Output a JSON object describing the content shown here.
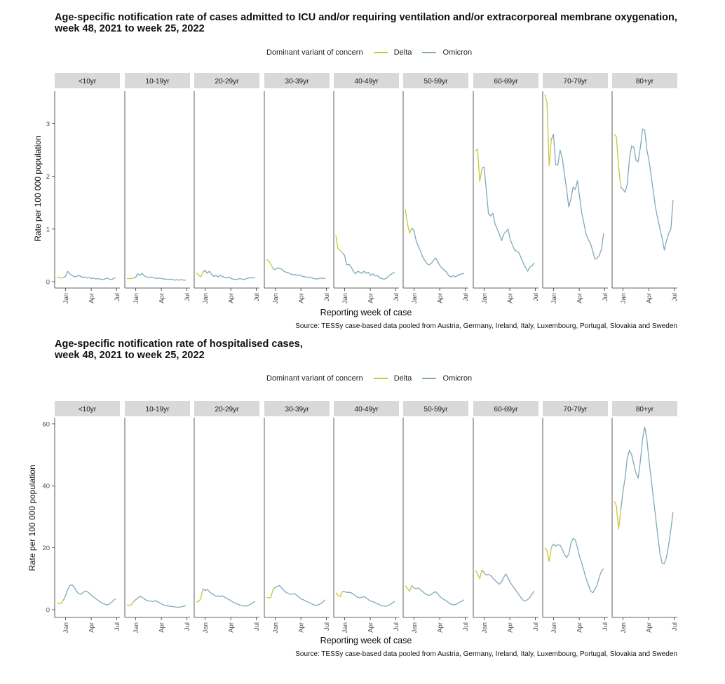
{
  "colors": {
    "delta": "#c8c832",
    "omicron": "#7fa9b8",
    "strip": "#d9d9d9",
    "axis": "#333333"
  },
  "chart_data": [
    {
      "type": "line",
      "title": "Age-specific notification rate of cases admitted to ICU and/or requiring ventilation and/or extracorporeal membrane oxygenation,",
      "subtitle": "week 48, 2021 to week 25, 2022",
      "legend_title": "Dominant variant of concern",
      "legend": [
        "Delta",
        "Omicron"
      ],
      "legend_position": "top",
      "xlabel": "Reporting week of case",
      "ylabel": "Rate per 100 000 population",
      "source": "Source: TESSy case-based data pooled from Austria, Germany, Ireland, Italy, Luxembourg, Portugal, Slovakia and Sweden",
      "x_ticks": [
        "Jan",
        "Apr",
        "Jul"
      ],
      "y_ticks": [
        0,
        1,
        2,
        3
      ],
      "ylim": [
        -0.12,
        3.62
      ],
      "x_range_weeks": [
        48,
        25
      ],
      "panels": [
        {
          "label": "<10yr",
          "delta": [
            0.08,
            0.08,
            0.07,
            0.08
          ],
          "omicron": [
            0.08,
            0.1,
            0.2,
            0.15,
            0.12,
            0.09,
            0.1,
            0.12,
            0.1,
            0.08,
            0.09,
            0.07,
            0.08,
            0.06,
            0.07,
            0.05,
            0.06,
            0.05,
            0.04,
            0.05,
            0.07,
            0.05,
            0.04,
            0.06,
            0.08
          ]
        },
        {
          "label": "10-19yr",
          "delta": [
            0.06,
            0.06,
            0.06,
            0.07
          ],
          "omicron": [
            0.07,
            0.08,
            0.15,
            0.12,
            0.16,
            0.11,
            0.09,
            0.08,
            0.09,
            0.08,
            0.07,
            0.06,
            0.07,
            0.06,
            0.05,
            0.05,
            0.04,
            0.05,
            0.04,
            0.03,
            0.04,
            0.03,
            0.04,
            0.03,
            0.03
          ]
        },
        {
          "label": "20-29yr",
          "delta": [
            0.17,
            0.13,
            0.09,
            0.18
          ],
          "omicron": [
            0.18,
            0.22,
            0.16,
            0.2,
            0.14,
            0.1,
            0.12,
            0.09,
            0.12,
            0.1,
            0.08,
            0.07,
            0.09,
            0.06,
            0.05,
            0.04,
            0.05,
            0.06,
            0.05,
            0.04,
            0.06,
            0.07,
            0.08,
            0.07,
            0.08
          ]
        },
        {
          "label": "30-39yr",
          "delta": [
            0.42,
            0.4,
            0.33,
            0.25
          ],
          "omicron": [
            0.25,
            0.23,
            0.26,
            0.25,
            0.24,
            0.2,
            0.18,
            0.17,
            0.15,
            0.13,
            0.14,
            0.12,
            0.13,
            0.11,
            0.1,
            0.09,
            0.08,
            0.09,
            0.07,
            0.06,
            0.05,
            0.06,
            0.07,
            0.06,
            0.07
          ]
        },
        {
          "label": "40-49yr",
          "delta": [
            0.88,
            0.62,
            0.6,
            0.55
          ],
          "omicron": [
            0.55,
            0.5,
            0.32,
            0.33,
            0.28,
            0.2,
            0.15,
            0.2,
            0.18,
            0.16,
            0.2,
            0.16,
            0.18,
            0.12,
            0.15,
            0.11,
            0.12,
            0.08,
            0.06,
            0.05,
            0.06,
            0.1,
            0.13,
            0.16,
            0.18
          ]
        },
        {
          "label": "50-59yr",
          "delta": [
            1.38,
            1.1,
            0.92,
            1.02
          ],
          "omicron": [
            1.02,
            0.97,
            0.78,
            0.67,
            0.58,
            0.47,
            0.4,
            0.34,
            0.32,
            0.35,
            0.41,
            0.45,
            0.37,
            0.3,
            0.25,
            0.22,
            0.18,
            0.11,
            0.09,
            0.12,
            0.09,
            0.12,
            0.14,
            0.15,
            0.16
          ]
        },
        {
          "label": "60-69yr",
          "delta": [
            2.48,
            2.52,
            1.9,
            2.15
          ],
          "omicron": [
            2.15,
            2.18,
            1.75,
            1.3,
            1.25,
            1.3,
            1.1,
            1.0,
            0.9,
            0.78,
            0.9,
            0.95,
            1.0,
            0.8,
            0.7,
            0.6,
            0.58,
            0.55,
            0.45,
            0.35,
            0.27,
            0.2,
            0.28,
            0.3,
            0.36
          ]
        },
        {
          "label": "70-79yr",
          "delta": [
            3.56,
            3.4,
            2.2,
            2.7
          ],
          "omicron": [
            2.7,
            2.8,
            2.22,
            2.22,
            2.5,
            2.35,
            2.05,
            1.75,
            1.42,
            1.58,
            1.8,
            1.75,
            1.92,
            1.6,
            1.3,
            1.1,
            0.9,
            0.8,
            0.72,
            0.58,
            0.43,
            0.45,
            0.5,
            0.62,
            0.92
          ]
        },
        {
          "label": "80+yr",
          "delta": [
            2.8,
            2.75,
            2.2,
            1.8
          ],
          "omicron": [
            1.8,
            1.75,
            1.7,
            1.85,
            2.35,
            2.58,
            2.55,
            2.3,
            2.28,
            2.55,
            2.9,
            2.88,
            2.5,
            2.3,
            2.0,
            1.7,
            1.4,
            1.2,
            1.0,
            0.82,
            0.6,
            0.78,
            0.92,
            1.0,
            1.55
          ]
        }
      ]
    },
    {
      "type": "line",
      "title": "Age-specific notification rate of hospitalised cases,",
      "subtitle": "week 48, 2021 to week 25, 2022",
      "legend_title": "Dominant variant of concern",
      "legend": [
        "Delta",
        "Omicron"
      ],
      "legend_position": "top",
      "xlabel": "Reporting week of case",
      "ylabel": "Rate per 100 000 population",
      "source": "Source: TESSy case-based data pooled from Austria, Germany, Ireland, Italy, Luxembourg, Portugal, Slovakia and Sweden",
      "x_ticks": [
        "Jan",
        "Apr",
        "Jul"
      ],
      "y_ticks": [
        0,
        20,
        40,
        60
      ],
      "ylim": [
        -2.5,
        62
      ],
      "x_range_weeks": [
        48,
        25
      ],
      "panels": [
        {
          "label": "<10yr",
          "delta": [
            2.2,
            2.0,
            2.1,
            3.0
          ],
          "omicron": [
            3.0,
            4.5,
            6.5,
            7.8,
            8.0,
            7.2,
            6.0,
            5.2,
            5.0,
            5.5,
            6.0,
            5.8,
            5.2,
            4.6,
            4.0,
            3.5,
            3.0,
            2.5,
            2.0,
            1.8,
            1.5,
            1.8,
            2.3,
            3.0,
            3.5
          ]
        },
        {
          "label": "10-19yr",
          "delta": [
            1.5,
            1.4,
            1.5,
            2.6
          ],
          "omicron": [
            2.6,
            3.2,
            3.8,
            4.3,
            4.0,
            3.5,
            3.0,
            2.8,
            2.8,
            2.6,
            2.9,
            2.6,
            2.2,
            1.8,
            1.5,
            1.3,
            1.2,
            1.1,
            1.0,
            0.9,
            0.8,
            0.8,
            0.9,
            1.1,
            1.3
          ]
        },
        {
          "label": "20-29yr",
          "delta": [
            2.5,
            2.6,
            3.5,
            6.8
          ],
          "omicron": [
            6.8,
            6.2,
            6.5,
            5.8,
            5.2,
            4.8,
            4.3,
            4.5,
            4.2,
            4.5,
            4.0,
            3.6,
            3.3,
            2.8,
            2.4,
            2.0,
            1.8,
            1.5,
            1.3,
            1.2,
            1.2,
            1.4,
            1.8,
            2.2,
            2.7
          ]
        },
        {
          "label": "30-39yr",
          "delta": [
            4.0,
            3.8,
            4.0,
            6.5
          ],
          "omicron": [
            6.5,
            7.2,
            7.5,
            7.8,
            7.0,
            6.2,
            5.6,
            5.2,
            5.0,
            5.0,
            5.2,
            4.6,
            4.0,
            3.5,
            3.2,
            2.8,
            2.5,
            2.2,
            1.8,
            1.5,
            1.4,
            1.6,
            2.0,
            2.6,
            3.2
          ]
        },
        {
          "label": "40-49yr",
          "delta": [
            5.5,
            4.6,
            4.2,
            5.8
          ],
          "omicron": [
            5.8,
            5.8,
            5.6,
            5.6,
            5.5,
            5.0,
            4.5,
            4.0,
            3.8,
            4.0,
            4.2,
            3.8,
            3.2,
            2.8,
            2.6,
            2.3,
            2.0,
            1.6,
            1.3,
            1.2,
            1.1,
            1.3,
            1.7,
            2.2,
            2.7
          ]
        },
        {
          "label": "50-59yr",
          "delta": [
            7.8,
            6.8,
            6.0,
            7.8
          ],
          "omicron": [
            7.8,
            7.0,
            6.8,
            7.0,
            6.4,
            5.8,
            5.2,
            4.8,
            4.6,
            5.0,
            5.5,
            5.8,
            5.0,
            4.2,
            3.6,
            3.2,
            2.8,
            2.2,
            1.8,
            1.6,
            1.6,
            2.0,
            2.4,
            2.8,
            3.2
          ]
        },
        {
          "label": "60-69yr",
          "delta": [
            12.8,
            11.5,
            10.0,
            12.8
          ],
          "omicron": [
            12.8,
            12.0,
            11.2,
            11.4,
            11.0,
            10.2,
            9.5,
            8.8,
            8.2,
            9.0,
            10.5,
            11.5,
            10.2,
            8.8,
            7.8,
            6.8,
            5.8,
            4.8,
            3.8,
            3.0,
            2.8,
            3.3,
            4.0,
            5.0,
            6.0
          ]
        },
        {
          "label": "70-79yr",
          "delta": [
            20.0,
            19.0,
            15.5,
            20.0
          ],
          "omicron": [
            20.0,
            21.2,
            20.5,
            21.0,
            20.8,
            19.5,
            17.8,
            16.8,
            18.0,
            21.5,
            23.0,
            22.5,
            20.0,
            17.0,
            15.0,
            12.5,
            10.0,
            8.0,
            6.0,
            5.5,
            6.5,
            8.0,
            10.5,
            12.5,
            13.2
          ]
        },
        {
          "label": "80+yr",
          "delta": [
            35.0,
            33.5,
            26.0,
            32.0
          ],
          "omicron": [
            32.0,
            38.0,
            42.5,
            49.0,
            51.5,
            50.0,
            47.0,
            44.0,
            42.5,
            48.0,
            55.0,
            59.0,
            55.0,
            48.0,
            42.0,
            36.0,
            30.0,
            24.0,
            18.0,
            15.0,
            14.8,
            17.0,
            21.0,
            26.0,
            31.5
          ]
        }
      ]
    }
  ]
}
